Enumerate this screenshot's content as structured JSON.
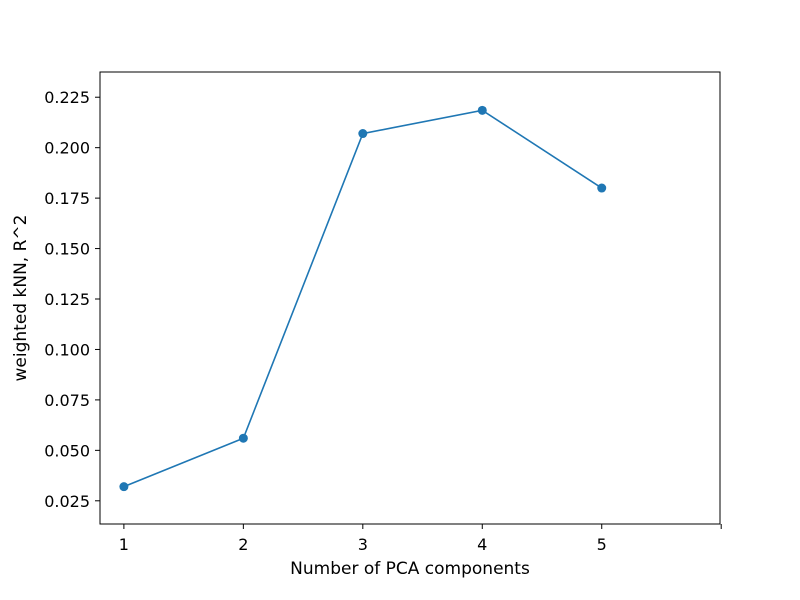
{
  "chart_data": {
    "type": "line",
    "title": "",
    "xlabel": "Number of PCA components",
    "ylabel": "weighted kNN, R^2",
    "x": [
      1,
      2,
      3,
      4,
      5
    ],
    "series": [
      {
        "values": [
          0.032,
          0.056,
          0.207,
          0.2185,
          0.18
        ],
        "color": "#1f77b4",
        "marker": "circle"
      }
    ],
    "xlim": [
      0.8,
      5.99
    ],
    "ylim": [
      0.0135,
      0.2375
    ],
    "xticks": [
      1,
      2,
      3,
      4,
      5
    ],
    "xtick_labels": [
      "1",
      "2",
      "3",
      "4",
      "5"
    ],
    "extra_xticks_unlabeled": [
      6
    ],
    "yticks": [
      0.025,
      0.05,
      0.075,
      0.1,
      0.125,
      0.15,
      0.175,
      0.2,
      0.225
    ],
    "ytick_labels": [
      "0.025",
      "0.050",
      "0.075",
      "0.100",
      "0.125",
      "0.150",
      "0.175",
      "0.200",
      "0.225"
    ],
    "grid": false,
    "legend": "none"
  }
}
